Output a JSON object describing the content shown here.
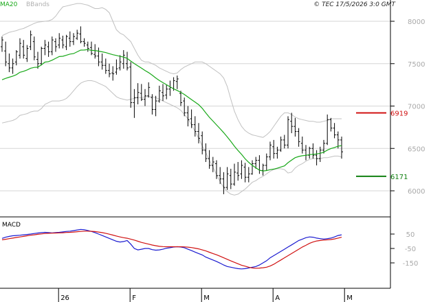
{
  "header": {
    "legend_ma": "MA20",
    "legend_bb": "BBands",
    "copyright": "© TEC 17/5/2026 3:0 GMT",
    "ma_color": "#18a818",
    "bb_color": "#c0c0c0"
  },
  "chart_data": [
    {
      "type": "ohlc",
      "title": "",
      "ylim": [
        5700,
        8100
      ],
      "y_ticks": [
        6000,
        6500,
        7000,
        7500,
        8000
      ],
      "y_tick_labels": [
        "6000",
        "6500",
        "7000",
        "7500",
        "8000"
      ],
      "x_labels": [
        "26",
        "F",
        "M",
        "A",
        "M"
      ],
      "x_label_bar_index": [
        16,
        36,
        56,
        76,
        96
      ],
      "grid": true,
      "levels": [
        {
          "value": 6919,
          "label": "6919",
          "color": "#d01010"
        },
        {
          "value": 6171,
          "label": "6171",
          "color": "#108010"
        }
      ],
      "bars": [
        [
          7700,
          7820,
          7640,
          7780
        ],
        [
          7650,
          7760,
          7470,
          7520
        ],
        [
          7500,
          7620,
          7400,
          7450
        ],
        [
          7450,
          7560,
          7380,
          7500
        ],
        [
          7520,
          7660,
          7480,
          7640
        ],
        [
          7600,
          7800,
          7560,
          7740
        ],
        [
          7700,
          7780,
          7560,
          7600
        ],
        [
          7560,
          7720,
          7520,
          7680
        ],
        [
          7700,
          7890,
          7660,
          7840
        ],
        [
          7760,
          7820,
          7540,
          7580
        ],
        [
          7550,
          7640,
          7440,
          7500
        ],
        [
          7500,
          7700,
          7480,
          7680
        ],
        [
          7680,
          7780,
          7600,
          7720
        ],
        [
          7700,
          7760,
          7580,
          7640
        ],
        [
          7640,
          7820,
          7600,
          7780
        ],
        [
          7760,
          7800,
          7640,
          7700
        ],
        [
          7720,
          7860,
          7680,
          7800
        ],
        [
          7780,
          7830,
          7680,
          7720
        ],
        [
          7700,
          7840,
          7660,
          7820
        ],
        [
          7800,
          7880,
          7700,
          7760
        ],
        [
          7760,
          7860,
          7720,
          7820
        ],
        [
          7800,
          7900,
          7780,
          7860
        ],
        [
          7850,
          7940,
          7740,
          7760
        ],
        [
          7760,
          7800,
          7700,
          7740
        ],
        [
          7720,
          7760,
          7640,
          7680
        ],
        [
          7690,
          7760,
          7600,
          7620
        ],
        [
          7610,
          7730,
          7560,
          7590
        ],
        [
          7590,
          7690,
          7470,
          7520
        ],
        [
          7520,
          7620,
          7430,
          7480
        ],
        [
          7480,
          7560,
          7380,
          7420
        ],
        [
          7420,
          7500,
          7340,
          7380
        ],
        [
          7390,
          7470,
          7300,
          7380
        ],
        [
          7400,
          7550,
          7370,
          7440
        ],
        [
          7450,
          7600,
          7420,
          7520
        ],
        [
          7500,
          7660,
          7440,
          7600
        ],
        [
          7500,
          7640,
          7420,
          7450
        ],
        [
          7460,
          7520,
          6980,
          7040
        ],
        [
          7040,
          7200,
          6860,
          7100
        ],
        [
          7100,
          7270,
          7020,
          7160
        ],
        [
          7150,
          7260,
          7060,
          7080
        ],
        [
          7080,
          7200,
          7000,
          7120
        ],
        [
          7120,
          7280,
          7100,
          7220
        ],
        [
          7100,
          7140,
          6900,
          6960
        ],
        [
          6960,
          7120,
          6880,
          7060
        ],
        [
          7060,
          7240,
          7040,
          7180
        ],
        [
          7160,
          7260,
          7060,
          7120
        ],
        [
          7130,
          7250,
          7080,
          7200
        ],
        [
          7200,
          7300,
          7120,
          7220
        ],
        [
          7210,
          7340,
          7180,
          7300
        ],
        [
          7290,
          7360,
          7200,
          7320
        ],
        [
          7150,
          7180,
          7000,
          7040
        ],
        [
          7060,
          7100,
          6880,
          6920
        ],
        [
          6920,
          7000,
          6760,
          6840
        ],
        [
          6850,
          6960,
          6740,
          6780
        ],
        [
          6780,
          6880,
          6640,
          6700
        ],
        [
          6700,
          6800,
          6560,
          6620
        ],
        [
          6650,
          6700,
          6430,
          6480
        ],
        [
          6480,
          6560,
          6340,
          6380
        ],
        [
          6380,
          6480,
          6260,
          6300
        ],
        [
          6300,
          6400,
          6220,
          6340
        ],
        [
          6320,
          6360,
          6140,
          6180
        ],
        [
          6180,
          6280,
          6080,
          6140
        ],
        [
          6140,
          6220,
          5960,
          6040
        ],
        [
          6040,
          6280,
          6010,
          6200
        ],
        [
          6180,
          6260,
          6020,
          6080
        ],
        [
          6080,
          6320,
          6060,
          6220
        ],
        [
          6210,
          6340,
          6120,
          6180
        ],
        [
          6200,
          6360,
          6140,
          6300
        ],
        [
          6280,
          6330,
          6100,
          6160
        ],
        [
          6160,
          6280,
          6100,
          6200
        ],
        [
          6200,
          6360,
          6190,
          6320
        ],
        [
          6320,
          6400,
          6260,
          6360
        ],
        [
          6360,
          6420,
          6200,
          6240
        ],
        [
          6240,
          6320,
          6180,
          6300
        ],
        [
          6300,
          6440,
          6240,
          6400
        ],
        [
          6400,
          6580,
          6360,
          6540
        ],
        [
          6520,
          6600,
          6380,
          6440
        ],
        [
          6440,
          6520,
          6380,
          6480
        ],
        [
          6480,
          6640,
          6460,
          6600
        ],
        [
          6600,
          6660,
          6500,
          6540
        ],
        [
          6540,
          6880,
          6500,
          6840
        ],
        [
          6820,
          6920,
          6680,
          6760
        ],
        [
          6760,
          6860,
          6640,
          6700
        ],
        [
          6700,
          6740,
          6520,
          6580
        ],
        [
          6560,
          6640,
          6440,
          6480
        ],
        [
          6480,
          6540,
          6360,
          6420
        ],
        [
          6420,
          6520,
          6380,
          6500
        ],
        [
          6500,
          6560,
          6380,
          6420
        ],
        [
          6420,
          6480,
          6300,
          6380
        ],
        [
          6380,
          6520,
          6340,
          6480
        ],
        [
          6480,
          6600,
          6440,
          6560
        ],
        [
          6560,
          6900,
          6540,
          6840
        ],
        [
          6840,
          6860,
          6700,
          6740
        ],
        [
          6740,
          6800,
          6620,
          6660
        ],
        [
          6660,
          6700,
          6500,
          6600
        ],
        [
          6600,
          6640,
          6380,
          6460
        ]
      ],
      "ma20": [
        7310,
        7326,
        7340,
        7353,
        7370,
        7398,
        7410,
        7426,
        7446,
        7456,
        7458,
        7486,
        7518,
        7524,
        7541,
        7563,
        7584,
        7587,
        7600,
        7613,
        7619,
        7640,
        7660,
        7661,
        7666,
        7657,
        7655,
        7648,
        7640,
        7631,
        7618,
        7606,
        7597,
        7586,
        7578,
        7563,
        7530,
        7501,
        7474,
        7447,
        7419,
        7394,
        7364,
        7331,
        7302,
        7276,
        7252,
        7227,
        7203,
        7184,
        7162,
        7137,
        7106,
        7076,
        7046,
        7016,
        6973,
        6919,
        6867,
        6823,
        6777,
        6733,
        6686,
        6636,
        6583,
        6526,
        6476,
        6430,
        6377,
        6336,
        6300,
        6271,
        6244,
        6234,
        6239,
        6249,
        6256,
        6266,
        6281,
        6294,
        6332,
        6362,
        6391,
        6405,
        6414,
        6419,
        6427,
        6431,
        6435,
        6443,
        6455,
        6480,
        6499,
        6511,
        6527,
        6533
      ],
      "bb_upper": [
        7830,
        7850,
        7870,
        7880,
        7890,
        7905,
        7915,
        7935,
        7955,
        7975,
        7990,
        7995,
        8000,
        8005,
        8020,
        8060,
        8120,
        8170,
        8180,
        8190,
        8200,
        8210,
        8210,
        8200,
        8190,
        8170,
        8150,
        8150,
        8160,
        8140,
        8100,
        8000,
        7900,
        7860,
        7840,
        7800,
        7760,
        7680,
        7600,
        7540,
        7520,
        7520,
        7500,
        7480,
        7450,
        7430,
        7410,
        7390,
        7380,
        7390,
        7430,
        7460,
        7480,
        7500,
        7520,
        7520,
        7520,
        7500,
        7470,
        7440,
        7410,
        7380,
        7330,
        7230,
        7080,
        6940,
        6840,
        6760,
        6710,
        6680,
        6660,
        6650,
        6640,
        6630,
        6660,
        6700,
        6760,
        6820,
        6880,
        6920,
        6920,
        6900,
        6870,
        6850,
        6840,
        6830,
        6820,
        6820,
        6810,
        6810,
        6820,
        6830,
        6850,
        6850,
        6850,
        6850
      ],
      "bb_lower": [
        6800,
        6810,
        6820,
        6830,
        6850,
        6890,
        6900,
        6910,
        6930,
        6940,
        6940,
        6970,
        7020,
        7040,
        7060,
        7060,
        7060,
        7070,
        7090,
        7130,
        7180,
        7230,
        7270,
        7290,
        7300,
        7300,
        7290,
        7270,
        7250,
        7230,
        7190,
        7150,
        7110,
        7090,
        7080,
        7070,
        7080,
        7090,
        7100,
        7100,
        7110,
        7110,
        7110,
        7100,
        7080,
        7060,
        7040,
        7020,
        7000,
        6980,
        6950,
        6900,
        6850,
        6780,
        6700,
        6620,
        6530,
        6450,
        6360,
        6280,
        6190,
        6110,
        6040,
        5990,
        5960,
        5950,
        5960,
        5990,
        6020,
        6060,
        6100,
        6120,
        6150,
        6170,
        6200,
        6230,
        6250,
        6260,
        6260,
        6250,
        6210,
        6220,
        6270,
        6300,
        6320,
        6350,
        6370,
        6380,
        6380,
        6380,
        6390,
        6390,
        6400,
        6410,
        6410,
        6400
      ]
    },
    {
      "type": "line",
      "title": "MACD",
      "ylim": [
        -230,
        130
      ],
      "y_ticks": [
        50,
        -50,
        -150
      ],
      "y_tick_labels": [
        "50",
        "-50",
        "-150"
      ],
      "series": [
        {
          "name": "",
          "color": "#1a1ad0",
          "values": [
            20,
            28,
            34,
            38,
            40,
            42,
            45,
            47,
            50,
            54,
            57,
            60,
            62,
            60,
            58,
            60,
            62,
            65,
            68,
            70,
            74,
            78,
            82,
            80,
            75,
            68,
            60,
            50,
            40,
            30,
            20,
            10,
            0,
            -5,
            -2,
            5,
            -20,
            -50,
            -60,
            -55,
            -50,
            -50,
            -58,
            -62,
            -60,
            -55,
            -48,
            -45,
            -40,
            -38,
            -40,
            -45,
            -55,
            -65,
            -75,
            -85,
            -95,
            -110,
            -120,
            -130,
            -140,
            -152,
            -165,
            -175,
            -180,
            -185,
            -190,
            -192,
            -190,
            -185,
            -180,
            -175,
            -165,
            -150,
            -135,
            -115,
            -100,
            -85,
            -70,
            -55,
            -40,
            -25,
            -10,
            5,
            15,
            25,
            30,
            28,
            22,
            18,
            15,
            18,
            22,
            30,
            40,
            45
          ]
        },
        {
          "name": "",
          "color": "#d01010",
          "values": [
            10,
            14,
            18,
            22,
            26,
            30,
            34,
            38,
            42,
            45,
            48,
            51,
            54,
            55,
            56,
            57,
            58,
            59,
            61,
            62,
            64,
            66,
            68,
            70,
            70,
            69,
            67,
            64,
            60,
            55,
            49,
            43,
            36,
            30,
            25,
            21,
            15,
            8,
            0,
            -8,
            -14,
            -20,
            -26,
            -31,
            -35,
            -37,
            -38,
            -38,
            -38,
            -38,
            -38,
            -39,
            -41,
            -44,
            -48,
            -53,
            -60,
            -67,
            -76,
            -85,
            -94,
            -104,
            -115,
            -125,
            -136,
            -146,
            -156,
            -166,
            -173,
            -180,
            -185,
            -187,
            -186,
            -184,
            -180,
            -172,
            -160,
            -145,
            -130,
            -115,
            -100,
            -85,
            -70,
            -55,
            -40,
            -28,
            -15,
            -5,
            2,
            5,
            8,
            10,
            12,
            16,
            22,
            28
          ]
        }
      ]
    }
  ]
}
